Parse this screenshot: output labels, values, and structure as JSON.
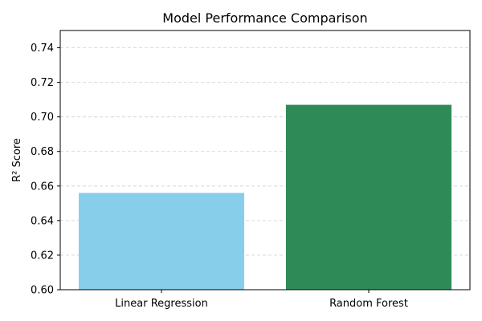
{
  "chart_data": {
    "type": "bar",
    "title": "Model Performance Comparison",
    "xlabel": "",
    "ylabel": "R² Score",
    "categories": [
      "Linear Regression",
      "Random Forest"
    ],
    "values": [
      0.656,
      0.707
    ],
    "colors": [
      "#87CEEB",
      "#2E8B57"
    ],
    "ylim": [
      0.6,
      0.75
    ],
    "yticks": [
      0.6,
      0.62,
      0.64,
      0.66,
      0.68,
      0.7,
      0.72,
      0.74
    ],
    "ytick_labels": [
      "0.60",
      "0.62",
      "0.64",
      "0.66",
      "0.68",
      "0.70",
      "0.72",
      "0.74"
    ],
    "grid": "y-dashed"
  }
}
